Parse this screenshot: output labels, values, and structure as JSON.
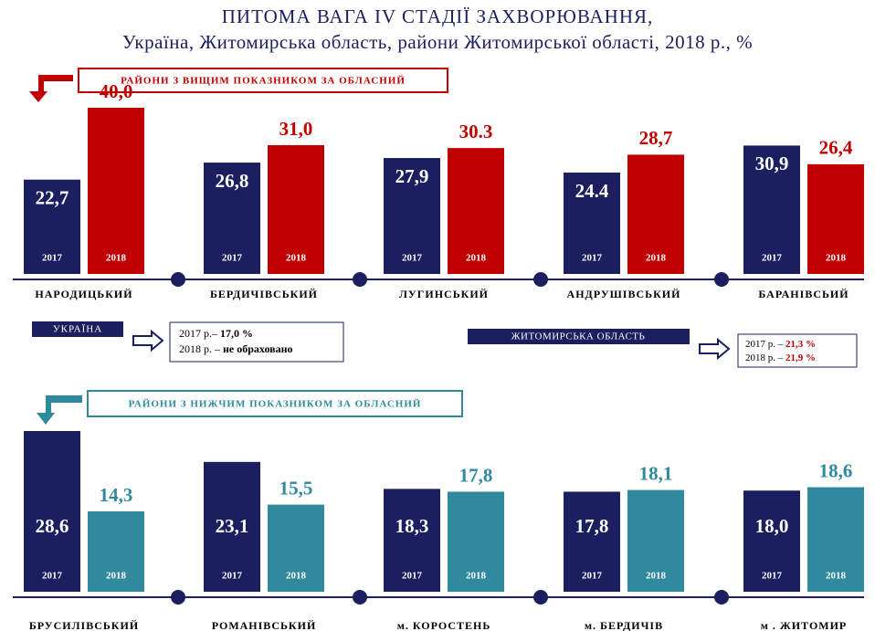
{
  "title": "ПИТОМА ВАГА IV СТАДІЇ ЗАХВОРЮВАННЯ,",
  "subtitle": "Україна, Житомирська область, райони Житомирської області, 2018 р., %",
  "ukraine": {
    "label": "УКРАЇНА",
    "line1_prefix": "2017 р.– ",
    "line1_value": "17,0 %",
    "line2_prefix": "2018 р. – ",
    "line2_value": "не обраховано"
  },
  "region": {
    "label": "ЖИТОМИРСЬКА ОБЛАСТЬ",
    "line1_prefix": "2017 р. – ",
    "line1_value": "21,3 %",
    "line2_prefix": "2018 р. – ",
    "line2_value": "21,9 %"
  },
  "chart_data": [
    {
      "type": "bar",
      "title": "РАЙОНИ З ВИЩИМ ПОКАЗНИКОМ ЗА ОБЛАСНИЙ",
      "categories": [
        "НАРОДИЦЬКИЙ",
        "БЕРДИЧІВСЬКИЙ",
        "ЛУГИНСЬКИЙ",
        "АНДРУШІВСЬКИЙ",
        "БАРАНІВСЬИЙ"
      ],
      "series": [
        {
          "name": "2017",
          "color": "#1b1f5f",
          "values": [
            22.7,
            26.8,
            27.9,
            24.4,
            30.9
          ],
          "value_labels": [
            "22,7",
            "26,8",
            "27,9",
            "24.4",
            "30,9"
          ]
        },
        {
          "name": "2018",
          "color": "#c00000",
          "values": [
            40.0,
            31.0,
            30.3,
            28.7,
            26.4
          ],
          "value_labels": [
            "40,0",
            "31,0",
            "30.3",
            "28,7",
            "26,4"
          ]
        }
      ]
    },
    {
      "type": "bar",
      "title": "РАЙОНИ З НИЖЧИМ ПОКАЗНИКОМ ЗА ОБЛАСНИЙ",
      "categories": [
        "БРУСИЛІВСЬКИЙ",
        "РОМАНІВСЬКИЙ",
        "м. КОРОСТЕНЬ",
        "м. БЕРДИЧІВ",
        "м . ЖИТОМИР"
      ],
      "series": [
        {
          "name": "2017",
          "color": "#1b1f5f",
          "values": [
            28.6,
            23.1,
            18.3,
            17.8,
            18.0
          ],
          "value_labels": [
            "28,6",
            "23,1",
            "18,3",
            "17,8",
            "18,0"
          ]
        },
        {
          "name": "2018",
          "color": "#31899e",
          "values": [
            14.3,
            15.5,
            17.8,
            18.1,
            18.6
          ],
          "value_labels": [
            "14,3",
            "15,5",
            "17,8",
            "18,1",
            "18,6"
          ]
        }
      ]
    }
  ]
}
